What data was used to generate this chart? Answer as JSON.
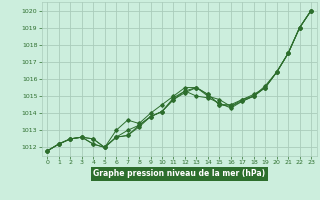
{
  "title": "Graphe pression niveau de la mer (hPa)",
  "bg_color": "#cceedd",
  "plot_bg": "#cceedd",
  "grid_color": "#aaccbb",
  "line_color": "#2d6e2d",
  "label_bg": "#2d6e2d",
  "label_fg": "#ffffff",
  "xlim": [
    -0.5,
    23.5
  ],
  "ylim": [
    1011.5,
    1020.5
  ],
  "yticks": [
    1012,
    1013,
    1014,
    1015,
    1016,
    1017,
    1018,
    1019,
    1020
  ],
  "xticks": [
    0,
    1,
    2,
    3,
    4,
    5,
    6,
    7,
    8,
    9,
    10,
    11,
    12,
    13,
    14,
    15,
    16,
    17,
    18,
    19,
    20,
    21,
    22,
    23
  ],
  "series": [
    [
      1011.8,
      1012.2,
      1012.5,
      1012.6,
      1012.5,
      1012.0,
      1012.6,
      1012.7,
      1013.3,
      1013.8,
      1014.1,
      1014.9,
      1015.3,
      1015.5,
      1015.0,
      1014.8,
      1014.4,
      1014.8,
      1015.0,
      1015.5,
      1016.4,
      1017.5,
      1019.0,
      1020.0
    ],
    [
      1011.8,
      1012.2,
      1012.5,
      1012.6,
      1012.5,
      1012.0,
      1012.6,
      1013.0,
      1013.3,
      1013.8,
      1014.1,
      1014.8,
      1015.3,
      1015.0,
      1014.9,
      1014.6,
      1014.3,
      1014.7,
      1015.0,
      1015.6,
      1016.4,
      1017.5,
      1019.0,
      1020.0
    ],
    [
      1011.8,
      1012.2,
      1012.5,
      1012.6,
      1012.2,
      1012.0,
      1012.6,
      1012.7,
      1013.2,
      1013.8,
      1014.1,
      1014.8,
      1015.2,
      1015.5,
      1015.1,
      1014.5,
      1014.4,
      1014.7,
      1015.0,
      1015.5,
      1016.4,
      1017.5,
      1019.0,
      1020.0
    ],
    [
      1011.8,
      1012.2,
      1012.5,
      1012.6,
      1012.2,
      1012.0,
      1013.0,
      1013.6,
      1013.4,
      1014.0,
      1014.5,
      1015.0,
      1015.5,
      1015.5,
      1015.1,
      1014.5,
      1014.5,
      1014.8,
      1015.1,
      1015.5,
      1016.4,
      1017.5,
      1019.0,
      1020.0
    ]
  ]
}
